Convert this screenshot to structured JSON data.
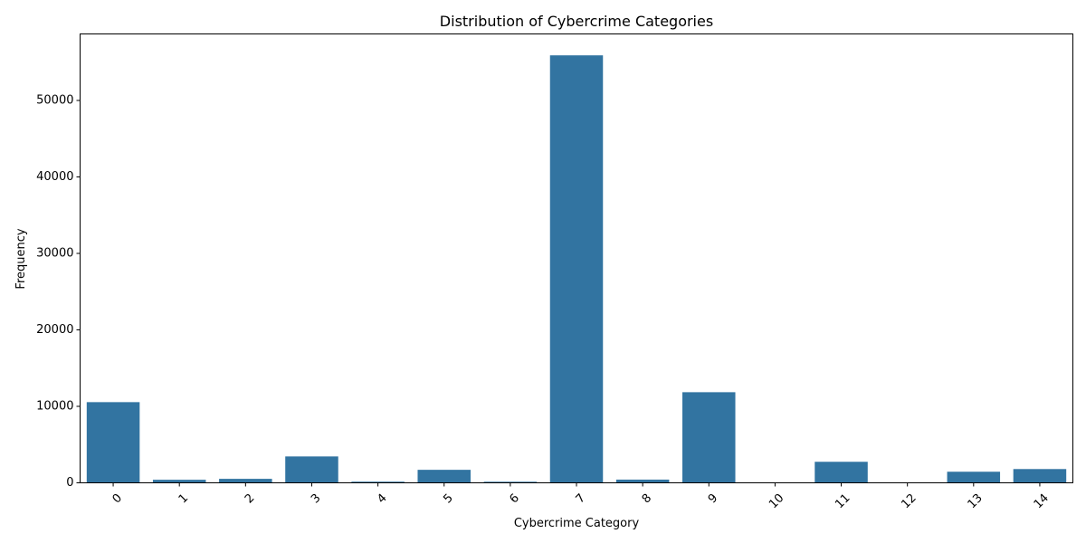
{
  "chart_data": {
    "type": "bar",
    "title": "Distribution of Cybercrime Categories",
    "xlabel": "Cybercrime Category",
    "ylabel": "Frequency",
    "categories": [
      "0",
      "1",
      "2",
      "3",
      "4",
      "5",
      "6",
      "7",
      "8",
      "9",
      "10",
      "11",
      "12",
      "13",
      "14"
    ],
    "values": [
      10550,
      400,
      520,
      3450,
      150,
      1700,
      140,
      55900,
      420,
      11850,
      30,
      2750,
      20,
      1450,
      1800
    ],
    "ylim": [
      0,
      58700
    ],
    "yticks": [
      "0",
      "10000",
      "20000",
      "30000",
      "40000",
      "50000"
    ],
    "ytick_values": [
      0,
      10000,
      20000,
      30000,
      40000,
      50000
    ],
    "grid": false,
    "legend": "none",
    "bar_color": "#3274a1"
  }
}
